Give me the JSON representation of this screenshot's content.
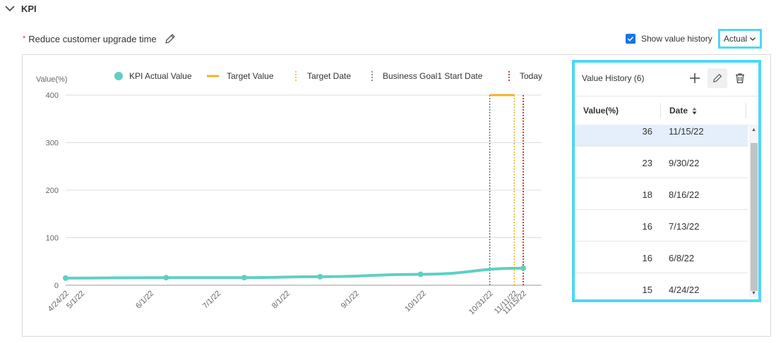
{
  "section": {
    "title": "KPI",
    "collapse_icon": "chevron-down-icon"
  },
  "kpi": {
    "required_mark": "*",
    "name": "Reduce customer upgrade time",
    "edit_icon": "pencil-icon"
  },
  "controls": {
    "show_history_label": "Show value history",
    "show_history_checked": true,
    "view_select": "Actual"
  },
  "value_history": {
    "title": "Value History (6)",
    "tools": [
      "plus-icon",
      "pencil-icon",
      "trash-icon"
    ],
    "columns": [
      "Value(%)",
      "Date"
    ],
    "rows": [
      {
        "value": "36",
        "date": "11/15/22"
      },
      {
        "value": "23",
        "date": "9/30/22"
      },
      {
        "value": "18",
        "date": "8/16/22"
      },
      {
        "value": "16",
        "date": "7/13/22"
      },
      {
        "value": "16",
        "date": "6/8/22"
      },
      {
        "value": "15",
        "date": "4/24/22"
      }
    ]
  },
  "colors": {
    "actual": "#5fcfc4",
    "target": "#f0b323",
    "goal_start": "#5a6b7d",
    "today": "#c00000",
    "highlight": "#4dd8f5"
  },
  "chart_data": {
    "type": "line",
    "ylabel": "Value(%)",
    "ylim": [
      0,
      400
    ],
    "yticks": [
      0,
      100,
      200,
      300,
      400
    ],
    "xtick_labels": [
      "4/24/22",
      "5/1/22",
      "6/1/22",
      "7/1/22",
      "8/1/22",
      "9/1/22",
      "10/1/22",
      "10/31/22",
      "11/11/22",
      "11/15/22"
    ],
    "xtick_dates": [
      "2022-04-24",
      "2022-05-01",
      "2022-06-01",
      "2022-07-01",
      "2022-08-01",
      "2022-09-01",
      "2022-10-01",
      "2022-10-31",
      "2022-11-11",
      "2022-11-15"
    ],
    "legend": [
      "KPI Actual Value",
      "Target Value",
      "Target Date",
      "Business Goal1 Start Date",
      "Today"
    ],
    "actual_series": [
      {
        "date": "2022-04-24",
        "value": 15
      },
      {
        "date": "2022-06-08",
        "value": 16
      },
      {
        "date": "2022-07-13",
        "value": 16
      },
      {
        "date": "2022-08-16",
        "value": 18
      },
      {
        "date": "2022-09-30",
        "value": 23
      },
      {
        "date": "2022-11-15",
        "value": 36
      }
    ],
    "target": {
      "value": 400,
      "from": "2022-10-31",
      "to": "2022-11-11"
    },
    "target_date": "2022-11-11",
    "goal_start_date": "2022-10-31",
    "today": "2022-11-15"
  }
}
